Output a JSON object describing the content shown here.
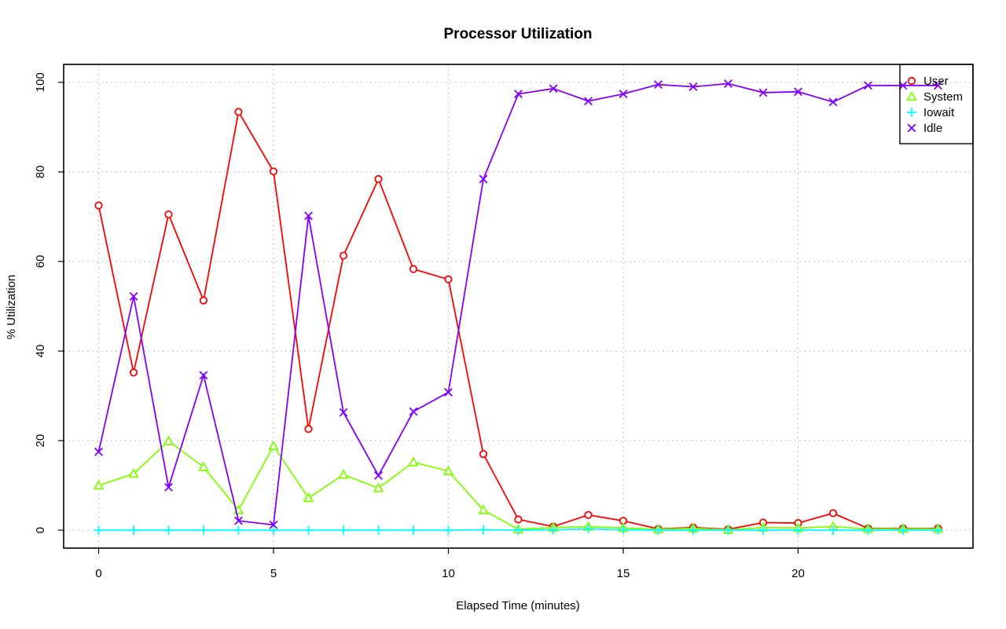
{
  "chart_data": {
    "type": "line",
    "title": "Processor Utilization",
    "xlabel": "Elapsed Time (minutes)",
    "ylabel": "% Utilization",
    "xlim": [
      -1,
      25
    ],
    "ylim": [
      -4,
      104
    ],
    "xticks": [
      0,
      5,
      10,
      15,
      20
    ],
    "yticks": [
      0,
      20,
      40,
      60,
      80,
      100
    ],
    "grid": true,
    "legend_position": "top-right",
    "x": [
      0,
      1,
      2,
      3,
      4,
      5,
      6,
      7,
      8,
      9,
      10,
      11,
      12,
      13,
      14,
      15,
      16,
      17,
      18,
      19,
      20,
      21,
      22,
      23,
      24
    ],
    "series": [
      {
        "name": "User",
        "color": "#ff0000",
        "marker": "circle",
        "values": [
          72.5,
          35.2,
          70.5,
          51.3,
          93.4,
          80.1,
          22.6,
          61.3,
          78.4,
          58.3,
          56.0,
          17.0,
          2.4,
          0.8,
          3.4,
          2.1,
          0.3,
          0.6,
          0.2,
          1.7,
          1.6,
          3.8,
          0.4,
          0.4,
          0.4
        ]
      },
      {
        "name": "System",
        "color": "#80ff00",
        "marker": "triangle",
        "values": [
          10.0,
          12.6,
          19.9,
          14.1,
          4.5,
          18.8,
          7.2,
          12.4,
          9.4,
          15.2,
          13.2,
          4.5,
          0.2,
          0.6,
          0.8,
          0.5,
          0.2,
          0.4,
          0.1,
          0.6,
          0.5,
          0.8,
          0.3,
          0.3,
          0.3
        ]
      },
      {
        "name": "Iowait",
        "color": "#00ffff",
        "marker": "plus",
        "values": [
          0,
          0,
          0,
          0,
          0,
          0,
          0,
          0,
          0,
          0,
          0,
          0.1,
          0,
          0.1,
          0.3,
          0.1,
          0,
          0,
          0,
          0,
          0,
          0,
          0,
          0,
          0
        ]
      },
      {
        "name": "Idle",
        "color": "#8000ff",
        "marker": "cross",
        "values": [
          17.5,
          52.2,
          9.6,
          34.6,
          2.1,
          1.2,
          70.2,
          26.3,
          12.2,
          26.5,
          30.8,
          78.4,
          97.4,
          98.6,
          95.8,
          97.4,
          99.5,
          99.0,
          99.7,
          97.7,
          97.9,
          95.6,
          99.3,
          99.3,
          99.3
        ]
      }
    ]
  }
}
